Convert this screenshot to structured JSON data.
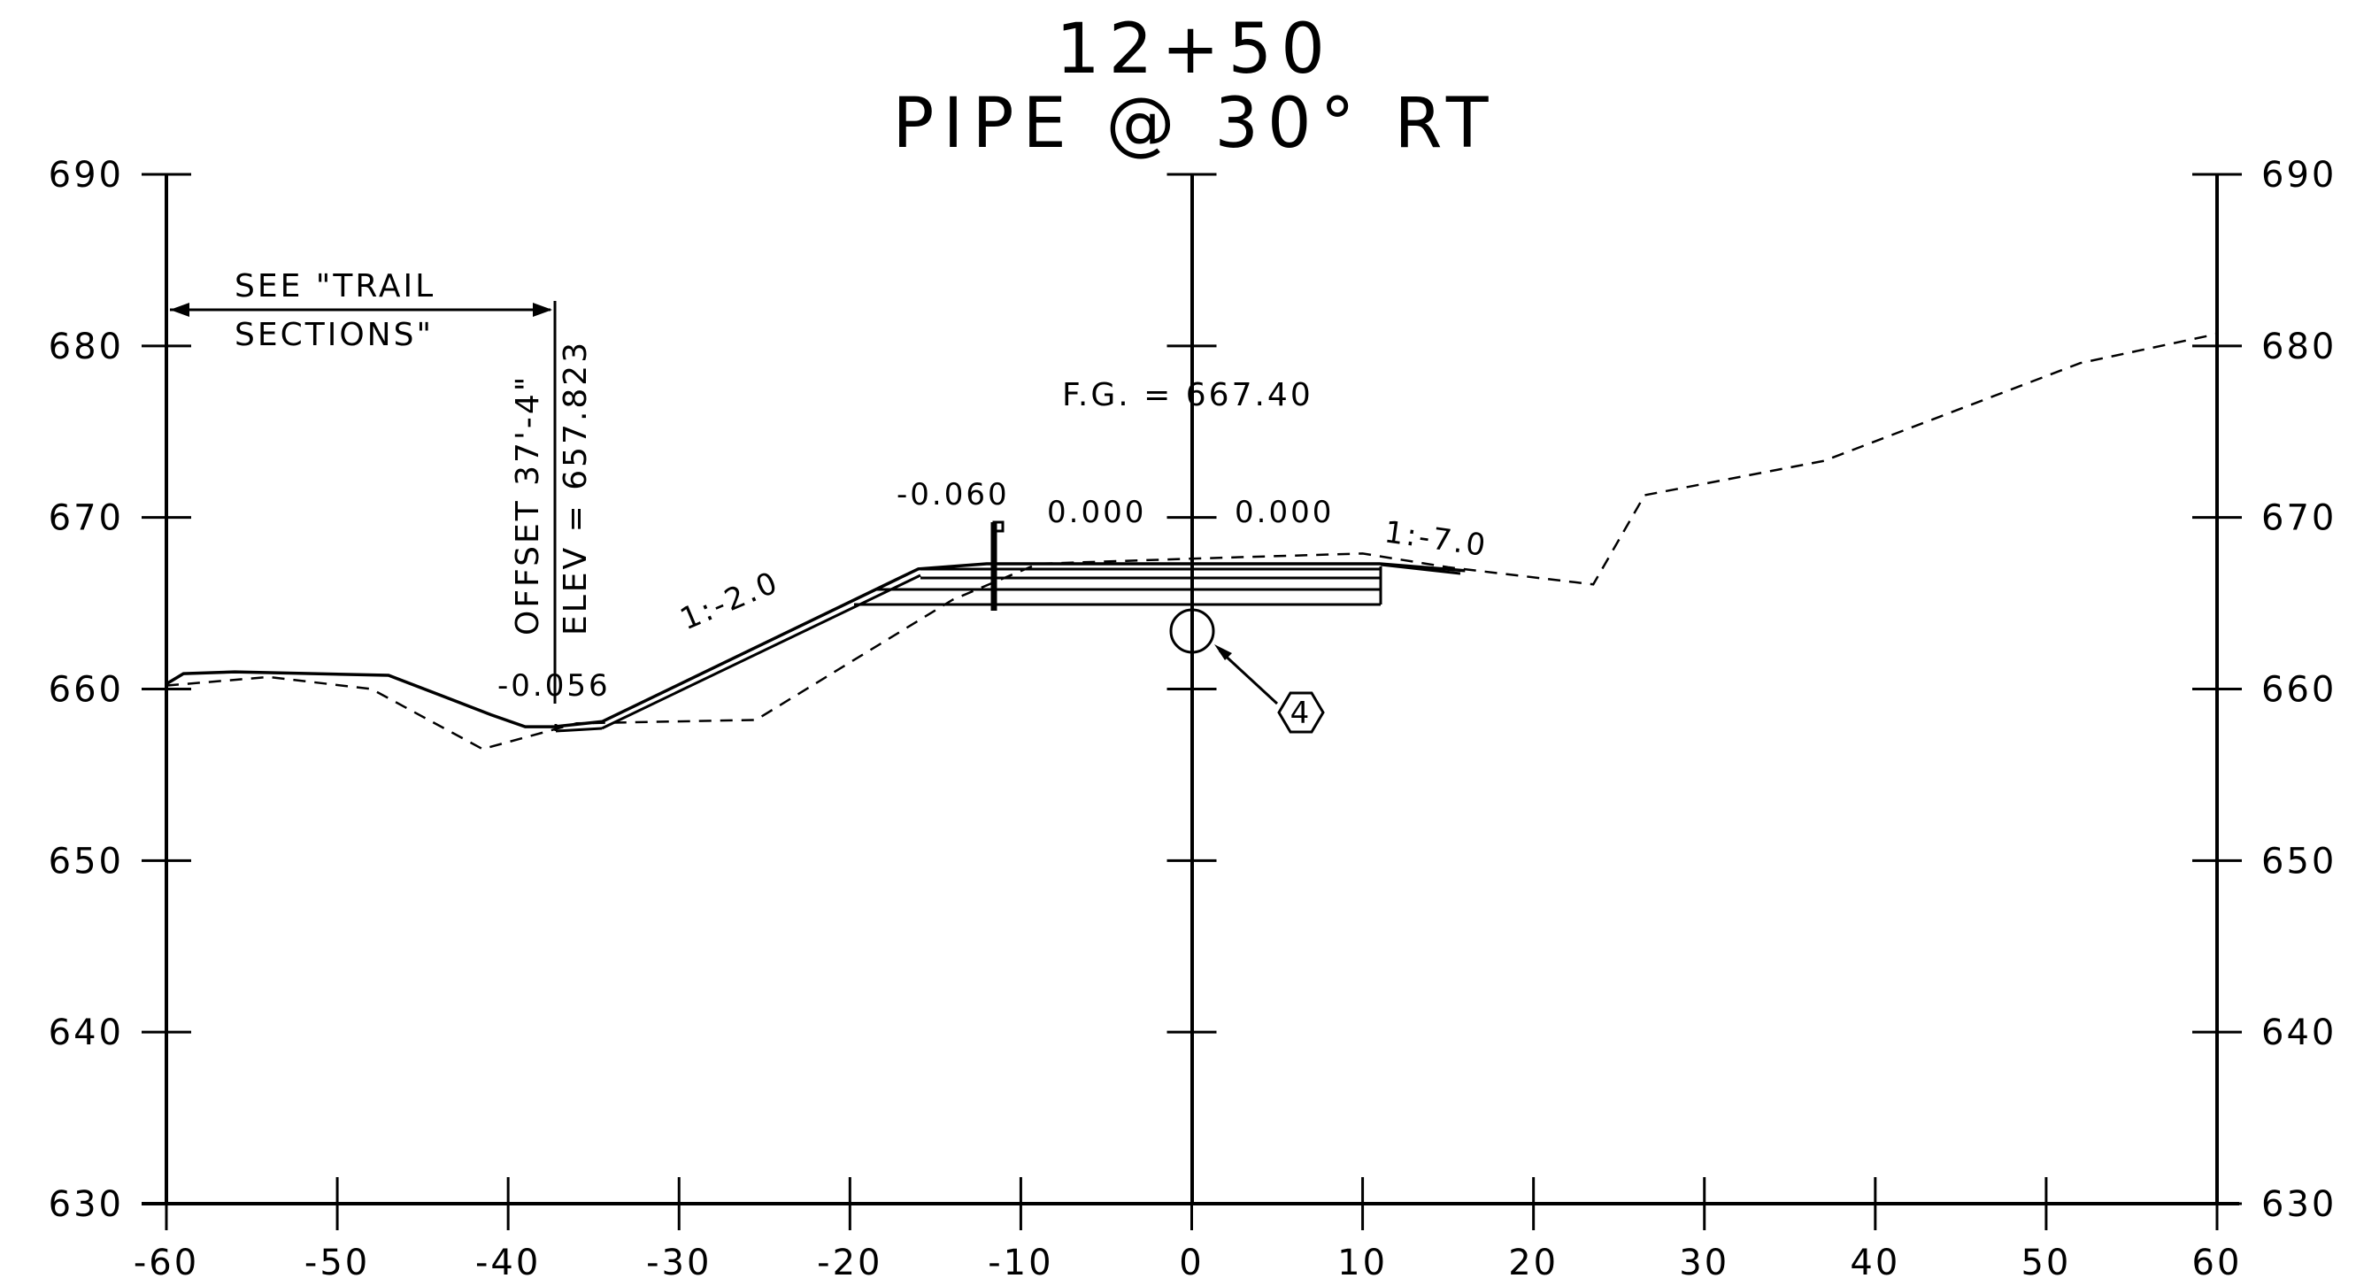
{
  "title": {
    "station": "12+50",
    "subtitle": "PIPE @ 30° RT"
  },
  "axes": {
    "x_ticks": [
      "-60",
      "-50",
      "-40",
      "-30",
      "-20",
      "-10",
      "0",
      "10",
      "20",
      "30",
      "40",
      "50",
      "60"
    ],
    "y_ticks": [
      "630",
      "640",
      "650",
      "660",
      "670",
      "680",
      "690"
    ]
  },
  "annotations": {
    "see_trail_line1": "SEE \"TRAIL",
    "see_trail_line2": "SECTIONS\"",
    "offset": "OFFSET 37'-4\"",
    "elev": "ELEV = 657.823",
    "slope_left_value": "-0.056",
    "slope_ratio_left": "1:-2.0",
    "slope_top": "-0.060",
    "cross_slope_left": "0.000",
    "cross_slope_right": "0.000",
    "finished_grade": "F.G. = 667.40",
    "slope_ratio_right": "1:-7.0",
    "callout_number": "4"
  },
  "chart_data": {
    "type": "line",
    "x_range": [
      -60,
      60
    ],
    "y_range": [
      630,
      690
    ],
    "x_ticks": [
      -60,
      -50,
      -40,
      -30,
      -20,
      -10,
      0,
      10,
      20,
      30,
      40,
      50,
      60
    ],
    "y_ticks": [
      630,
      640,
      650,
      660,
      670,
      680,
      690
    ],
    "grid": false,
    "series": [
      {
        "style": "solid",
        "points": [
          [
            -60,
            660.3
          ],
          [
            -59,
            660.9
          ],
          [
            -56,
            661.0
          ],
          [
            -47,
            660.8
          ],
          [
            -41,
            658.5
          ],
          [
            -39,
            657.8
          ],
          [
            -37.3,
            657.8
          ],
          [
            -34.5,
            658.1
          ],
          [
            -16,
            667.0
          ],
          [
            -12,
            667.3
          ],
          [
            11,
            667.3
          ],
          [
            16,
            666.9
          ]
        ]
      },
      {
        "style": "dashed",
        "points": [
          [
            -60,
            660.2
          ],
          [
            -54,
            660.7
          ],
          [
            -48,
            660.0
          ],
          [
            -41.5,
            656.5
          ],
          [
            -36,
            658.0
          ],
          [
            -25.5,
            658.2
          ],
          [
            -14,
            665.2
          ],
          [
            -9,
            667.3
          ],
          [
            0,
            667.6
          ],
          [
            10,
            667.9
          ],
          [
            15,
            667.1
          ],
          [
            23.5,
            666.1
          ],
          [
            26.5,
            671.3
          ],
          [
            37,
            673.3
          ],
          [
            52,
            679.0
          ],
          [
            60,
            680.7
          ]
        ]
      }
    ]
  }
}
